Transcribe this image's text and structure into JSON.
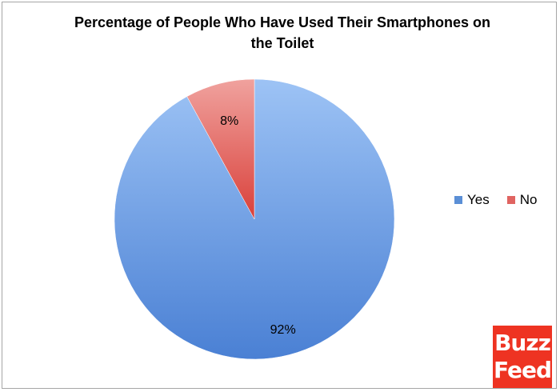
{
  "chart_data": {
    "type": "pie",
    "title_lines": [
      "Percentage of People Who Have Used Their Smartphones on",
      "the Toilet"
    ],
    "categories": [
      "Yes",
      "No"
    ],
    "values": [
      92,
      8
    ],
    "data_labels": [
      "92%",
      "8%"
    ],
    "colors": [
      "#5b8fd6",
      "#e06461"
    ],
    "legend_position": "right"
  },
  "logo": {
    "line1": "Buzz",
    "line2": "Feed",
    "color": "#ee3322"
  }
}
